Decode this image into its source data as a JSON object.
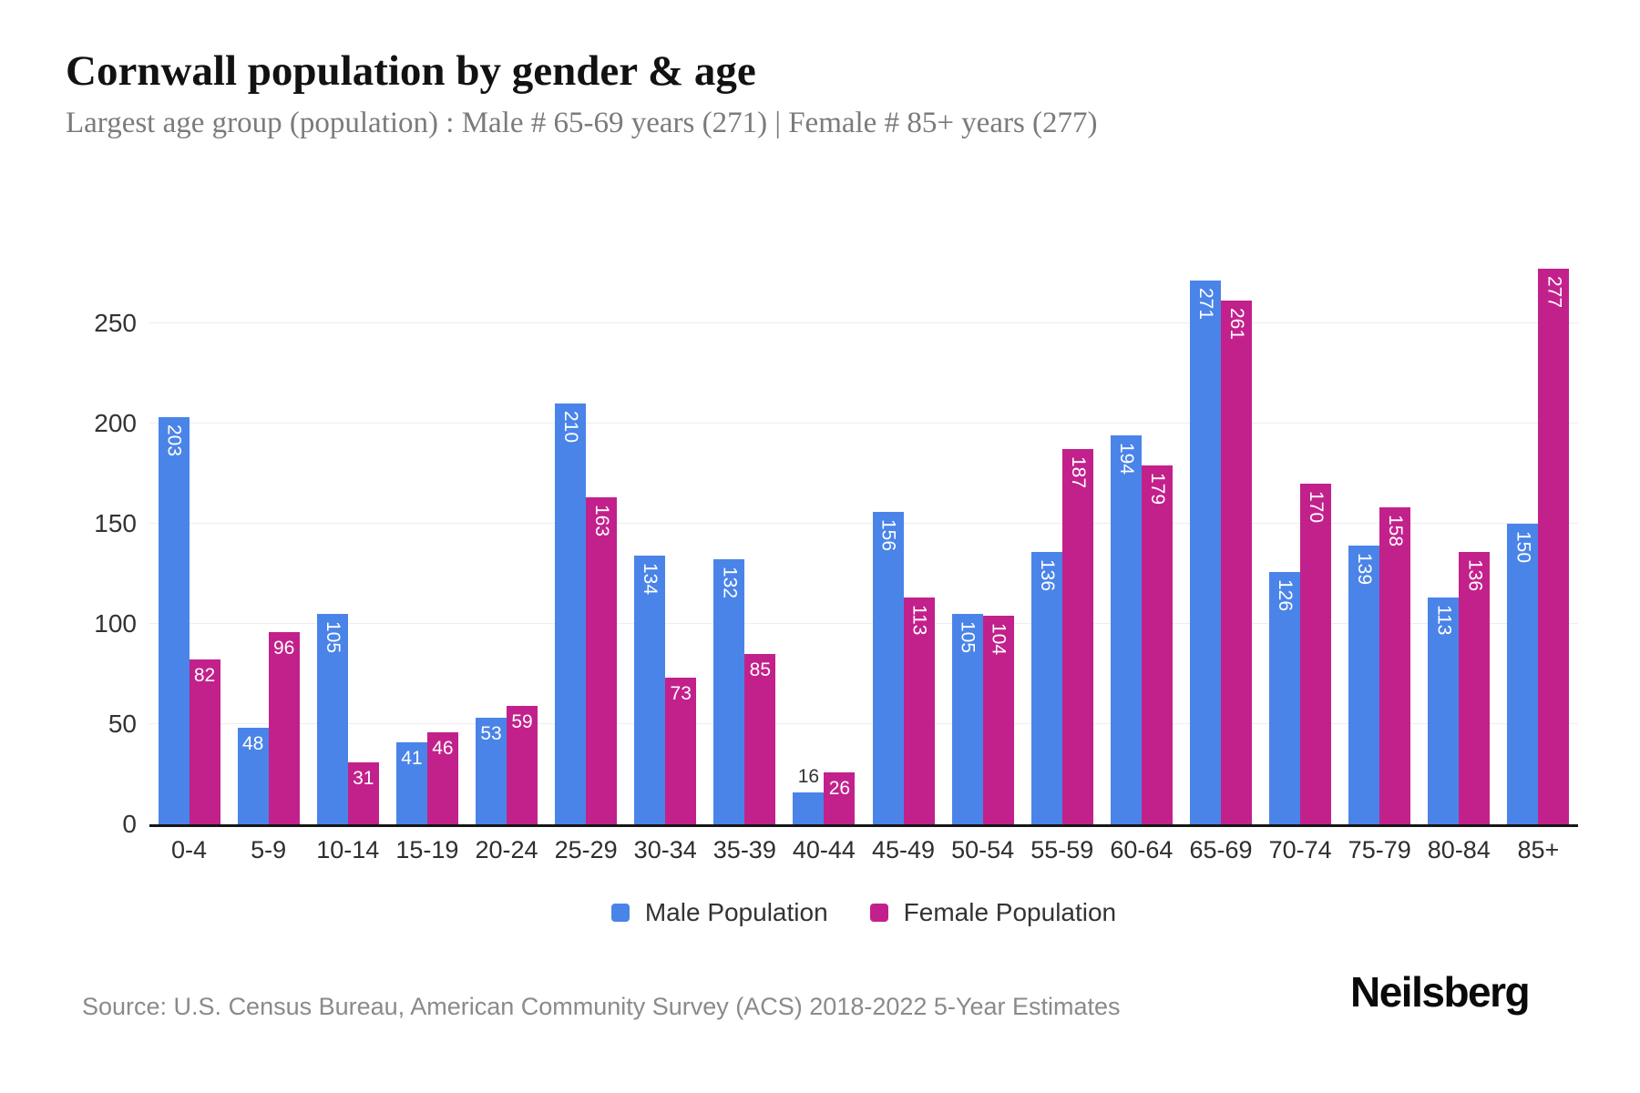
{
  "title": "Cornwall population by gender & age",
  "subtitle": "Largest age group (population) : Male # 65-69 years (271) | Female # 85+ years (277)",
  "source": "Source: U.S. Census Bureau, American Community Survey (ACS) 2018-2022 5-Year Estimates",
  "brand": "Neilsberg",
  "colors": {
    "male": "#4a84e8",
    "female": "#c2218c",
    "axis_line": "#161616",
    "gridline": "#ededed",
    "axis_text": "#333333",
    "subtitle_text": "#7b7b7b",
    "source_text": "#8a8a8a",
    "bar_label_inside": "#ffffff",
    "bar_label_outside": "#333333"
  },
  "legend": [
    {
      "label": "Male Population",
      "color": "#4a84e8"
    },
    {
      "label": "Female Population",
      "color": "#c2218c"
    }
  ],
  "chart_data": {
    "type": "bar",
    "categories": [
      "0-4",
      "5-9",
      "10-14",
      "15-19",
      "20-24",
      "25-29",
      "30-34",
      "35-39",
      "40-44",
      "45-49",
      "50-54",
      "55-59",
      "60-64",
      "65-69",
      "70-74",
      "75-79",
      "80-84",
      "85+"
    ],
    "series": [
      {
        "name": "Male Population",
        "color": "#4a84e8",
        "values": [
          203,
          48,
          105,
          41,
          53,
          210,
          134,
          132,
          16,
          156,
          105,
          136,
          194,
          271,
          126,
          139,
          113,
          150
        ]
      },
      {
        "name": "Female Population",
        "color": "#c2218c",
        "values": [
          82,
          96,
          31,
          46,
          59,
          163,
          73,
          85,
          26,
          113,
          104,
          187,
          179,
          261,
          170,
          158,
          136,
          277
        ]
      }
    ],
    "title": "Cornwall population by gender & age",
    "xlabel": "",
    "ylabel": "",
    "ylim": [
      0,
      293
    ],
    "yticks": [
      0,
      50,
      100,
      150,
      200,
      250
    ],
    "grid": true,
    "legend_position": "bottom"
  }
}
